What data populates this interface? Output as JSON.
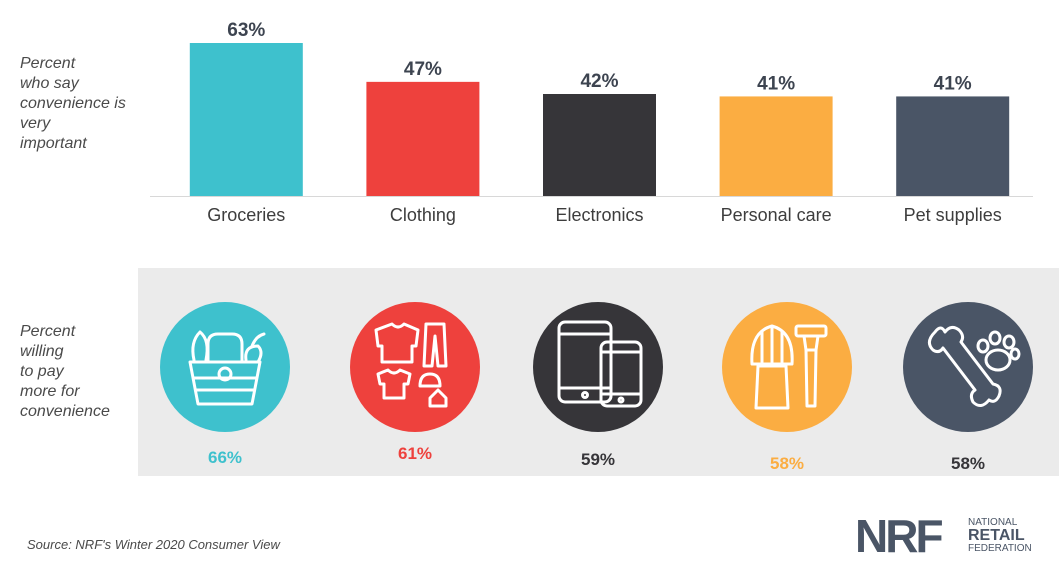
{
  "labels": {
    "top": "Percent\nwho say\nconvenience is\nvery\nimportant",
    "bottom": "Percent\nwilling\nto pay\nmore for\nconvenience"
  },
  "chart_data": [
    {
      "type": "bar",
      "categories": [
        "Groceries",
        "Clothing",
        "Electronics",
        "Personal care",
        "Pet supplies"
      ],
      "values": [
        63,
        47,
        42,
        41,
        41
      ],
      "value_labels": [
        "63%",
        "47%",
        "42%",
        "41%",
        "41%"
      ],
      "colors": [
        "#3ec1cd",
        "#ee413d",
        "#363539",
        "#fbad42",
        "#4a5566"
      ],
      "ylim": [
        0,
        63
      ]
    },
    {
      "type": "table",
      "categories": [
        "Groceries",
        "Clothing",
        "Electronics",
        "Personal care",
        "Pet supplies"
      ],
      "values": [
        66,
        61,
        59,
        58,
        58
      ],
      "value_labels": [
        "66%",
        "61%",
        "59%",
        "58%",
        "58%"
      ],
      "icons": [
        "basket-icon",
        "apparel-icon",
        "devices-icon",
        "shaving-kit-icon",
        "bone-paw-icon"
      ],
      "colors": [
        "#3ec1cd",
        "#ee413d",
        "#363539",
        "#fbad42",
        "#4a5566"
      ],
      "label_colors": [
        "#3ec1cd",
        "#ee413d",
        "#363539",
        "#fbad42",
        "#363539"
      ]
    }
  ],
  "source": "Source: NRF's Winter 2020 Consumer View",
  "logo": {
    "mark": "NRF",
    "line1": "NATIONAL",
    "line2": "RETAIL",
    "line3": "FEDERATION"
  }
}
